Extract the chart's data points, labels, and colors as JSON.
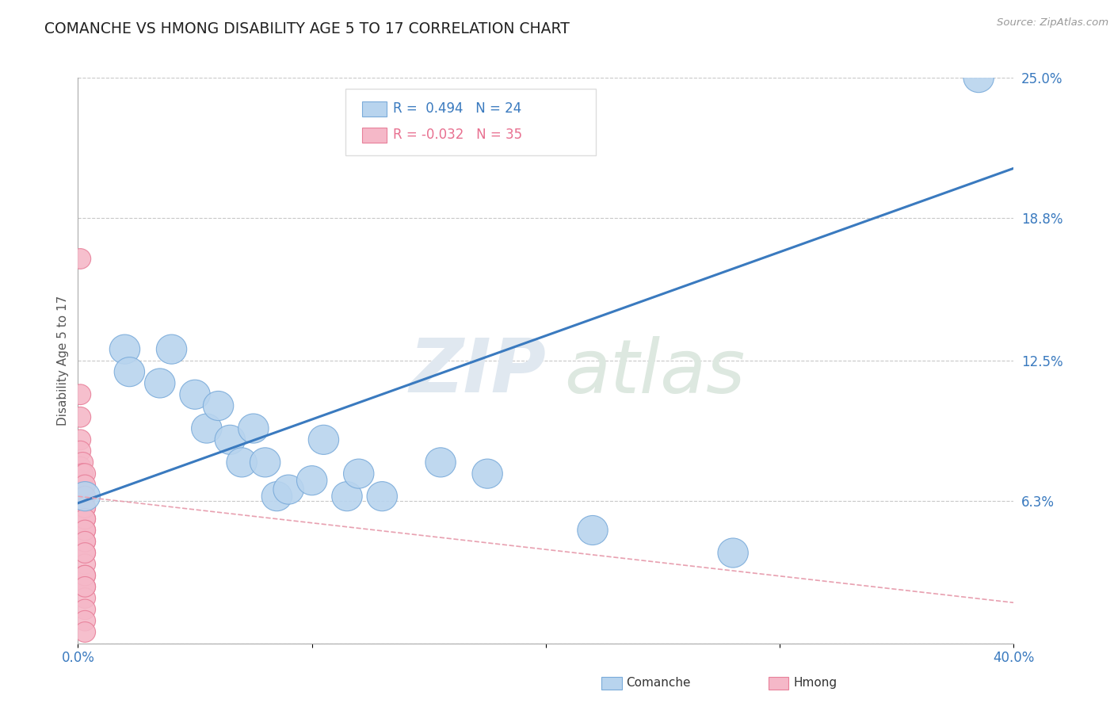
{
  "title": "COMANCHE VS HMONG DISABILITY AGE 5 TO 17 CORRELATION CHART",
  "source": "Source: ZipAtlas.com",
  "ylabel": "Disability Age 5 to 17",
  "xlim": [
    0.0,
    0.4
  ],
  "ylim": [
    0.0,
    0.25
  ],
  "xtick_labels": [
    "0.0%",
    "",
    "",
    "",
    "40.0%"
  ],
  "xtick_vals": [
    0.0,
    0.1,
    0.2,
    0.3,
    0.4
  ],
  "ytick_labels_right": [
    "25.0%",
    "18.8%",
    "12.5%",
    "6.3%",
    ""
  ],
  "ytick_vals_right": [
    0.25,
    0.188,
    0.125,
    0.063,
    0.0
  ],
  "grid_color": "#c8c8c8",
  "background_color": "#ffffff",
  "comanche_color": "#b8d4ee",
  "comanche_edge_color": "#7aabda",
  "hmong_color": "#f5b8c8",
  "hmong_edge_color": "#e8809a",
  "trend_comanche_color": "#3a7abf",
  "trend_hmong_color": "#e8a0b0",
  "legend_r_comanche": "R =  0.494",
  "legend_n_comanche": "N = 24",
  "legend_r_hmong": "R = -0.032",
  "legend_n_hmong": "N = 35",
  "watermark_zip": "ZIP",
  "watermark_atlas": "atlas",
  "comanche_x": [
    0.003,
    0.02,
    0.022,
    0.035,
    0.04,
    0.05,
    0.055,
    0.06,
    0.065,
    0.07,
    0.075,
    0.08,
    0.085,
    0.09,
    0.1,
    0.105,
    0.115,
    0.12,
    0.13,
    0.155,
    0.175,
    0.22,
    0.28,
    0.385
  ],
  "comanche_y": [
    0.065,
    0.13,
    0.12,
    0.115,
    0.13,
    0.11,
    0.095,
    0.105,
    0.09,
    0.08,
    0.095,
    0.08,
    0.065,
    0.068,
    0.072,
    0.09,
    0.065,
    0.075,
    0.065,
    0.08,
    0.075,
    0.05,
    0.04,
    0.25
  ],
  "hmong_x": [
    0.001,
    0.001,
    0.001,
    0.001,
    0.001,
    0.001,
    0.001,
    0.001,
    0.002,
    0.002,
    0.002,
    0.002,
    0.002,
    0.003,
    0.003,
    0.003,
    0.003,
    0.003,
    0.003,
    0.003,
    0.003,
    0.003,
    0.003,
    0.003,
    0.003,
    0.003,
    0.003,
    0.003,
    0.003,
    0.003,
    0.003,
    0.003,
    0.003,
    0.003,
    0.003
  ],
  "hmong_y": [
    0.17,
    0.11,
    0.1,
    0.09,
    0.085,
    0.078,
    0.072,
    0.065,
    0.08,
    0.075,
    0.07,
    0.065,
    0.06,
    0.075,
    0.07,
    0.065,
    0.06,
    0.055,
    0.05,
    0.045,
    0.04,
    0.035,
    0.03,
    0.025,
    0.02,
    0.015,
    0.01,
    0.005,
    0.06,
    0.055,
    0.05,
    0.045,
    0.04,
    0.03,
    0.025
  ],
  "trend_comanche_x0": 0.0,
  "trend_comanche_y0": 0.062,
  "trend_comanche_x1": 0.4,
  "trend_comanche_y1": 0.21,
  "trend_hmong_x0": 0.0,
  "trend_hmong_y0": 0.065,
  "trend_hmong_x1": 0.4,
  "trend_hmong_y1": 0.018
}
